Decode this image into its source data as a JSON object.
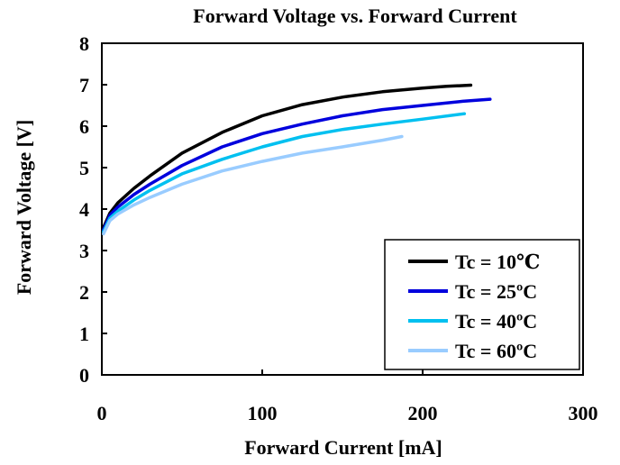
{
  "chart_data": {
    "type": "line",
    "title": "Forward Voltage vs. Forward Current",
    "xlabel": "Forward Current [mA]",
    "ylabel": "Forward Voltage [V]",
    "xlim": [
      0,
      300
    ],
    "ylim": [
      0,
      8
    ],
    "x_ticks": [
      "0",
      "100",
      "200",
      "300"
    ],
    "y_ticks": [
      "0",
      "1",
      "2",
      "3",
      "4",
      "5",
      "6",
      "7",
      "8"
    ],
    "grid": false,
    "legend_position": "bottom-right",
    "series": [
      {
        "name": "Tc = 10℃",
        "color": "#000000",
        "x": [
          1,
          5,
          10,
          20,
          30,
          50,
          75,
          100,
          125,
          150,
          175,
          200,
          215,
          230
        ],
        "y": [
          3.55,
          3.9,
          4.15,
          4.5,
          4.8,
          5.35,
          5.85,
          6.25,
          6.52,
          6.7,
          6.83,
          6.92,
          6.96,
          6.99
        ]
      },
      {
        "name": "Tc = 25ºC",
        "color": "#0000dd",
        "x": [
          1,
          5,
          10,
          20,
          30,
          50,
          75,
          100,
          125,
          150,
          175,
          200,
          225,
          242
        ],
        "y": [
          3.5,
          3.85,
          4.05,
          4.35,
          4.6,
          5.05,
          5.5,
          5.82,
          6.05,
          6.25,
          6.4,
          6.5,
          6.6,
          6.65
        ]
      },
      {
        "name": "Tc = 40ºC",
        "color": "#00c0f0",
        "x": [
          1,
          5,
          10,
          20,
          30,
          50,
          75,
          100,
          125,
          150,
          175,
          200,
          226
        ],
        "y": [
          3.45,
          3.78,
          3.95,
          4.22,
          4.45,
          4.85,
          5.2,
          5.5,
          5.75,
          5.92,
          6.05,
          6.17,
          6.3
        ]
      },
      {
        "name": "Tc = 60ºC",
        "color": "#99ccff",
        "x": [
          1,
          5,
          10,
          20,
          30,
          50,
          75,
          100,
          125,
          150,
          175,
          187
        ],
        "y": [
          3.4,
          3.72,
          3.88,
          4.1,
          4.28,
          4.6,
          4.92,
          5.15,
          5.35,
          5.5,
          5.66,
          5.75
        ]
      }
    ]
  }
}
